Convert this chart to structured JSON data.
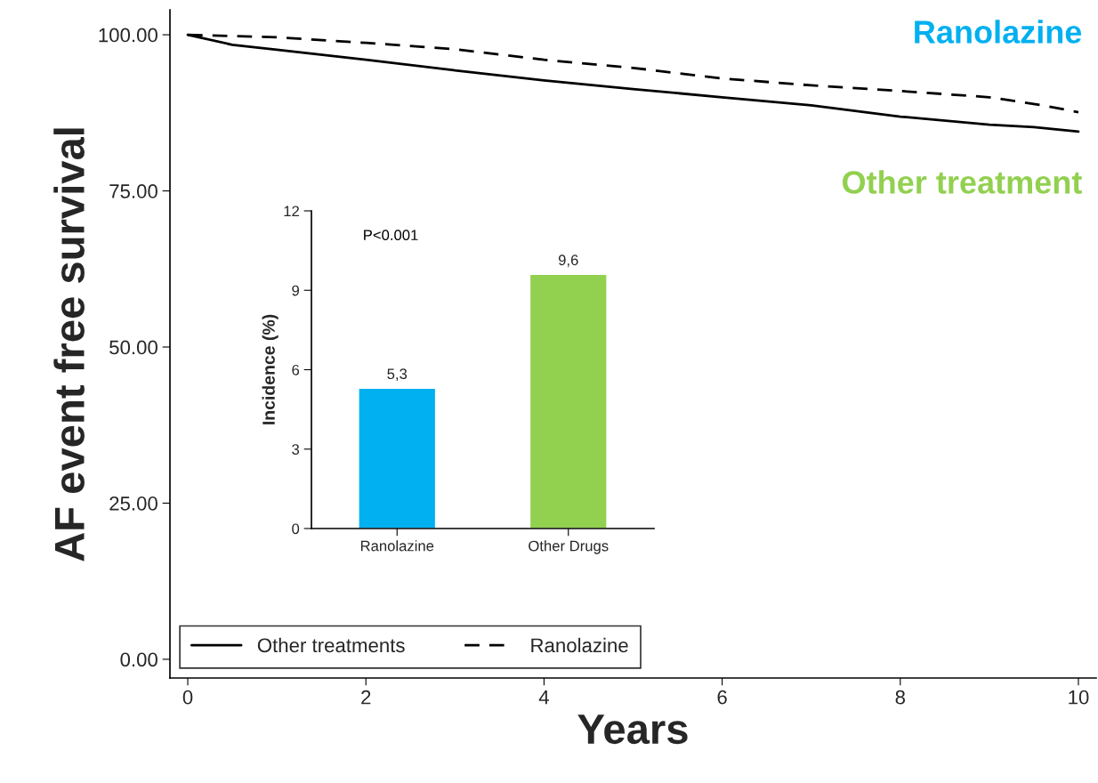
{
  "chart_data": [
    {
      "type": "line",
      "ylabel": "AF event free survival",
      "xlabel": "Years",
      "x": [
        0,
        0.5,
        1,
        2,
        3,
        4,
        5,
        6,
        7,
        8,
        9,
        9.5,
        10
      ],
      "series": [
        {
          "name": "Other treatments",
          "color": "#000000",
          "line_style": "solid",
          "values": [
            100,
            98.4,
            97.6,
            96.0,
            94.3,
            92.7,
            91.3,
            90.0,
            88.7,
            86.9,
            85.6,
            85.2,
            84.5
          ]
        },
        {
          "name": "Ranolazine",
          "color": "#000000",
          "line_style": "dashed",
          "x": [
            0,
            1,
            2,
            3,
            4,
            5,
            6,
            7,
            8,
            9,
            9.6,
            10
          ],
          "values": [
            100,
            99.6,
            98.7,
            97.7,
            96.0,
            94.7,
            93.0,
            91.9,
            91.0,
            90.0,
            88.7,
            87.6
          ]
        }
      ],
      "xlim": [
        -0.2,
        10.2
      ],
      "xticks": [
        0,
        2,
        4,
        6,
        8,
        10
      ],
      "ylim": [
        -3,
        104
      ],
      "yticks": [
        {
          "value": 0,
          "label": "0.00"
        },
        {
          "value": 25,
          "label": "25.00"
        },
        {
          "value": 50,
          "label": "50.00"
        },
        {
          "value": 75,
          "label": "75.00"
        },
        {
          "value": 100,
          "label": "100.00"
        }
      ],
      "annotations": [
        "Ranolazine",
        "Other treatment"
      ],
      "legend": "bottom left",
      "grid": false
    },
    {
      "type": "bar",
      "ylabel": "Incidence (%)",
      "categories": [
        "Ranolazine",
        "Other Drugs"
      ],
      "values": [
        5.3,
        9.6
      ],
      "colors": [
        "#00b0f0",
        "#92d050"
      ],
      "value_labels": [
        "5,3",
        "9,6"
      ],
      "ylim": [
        0,
        12
      ],
      "yticks": [
        0,
        3,
        6,
        9,
        12
      ],
      "annotations": [
        "P<0.001"
      ],
      "grid": false
    }
  ]
}
